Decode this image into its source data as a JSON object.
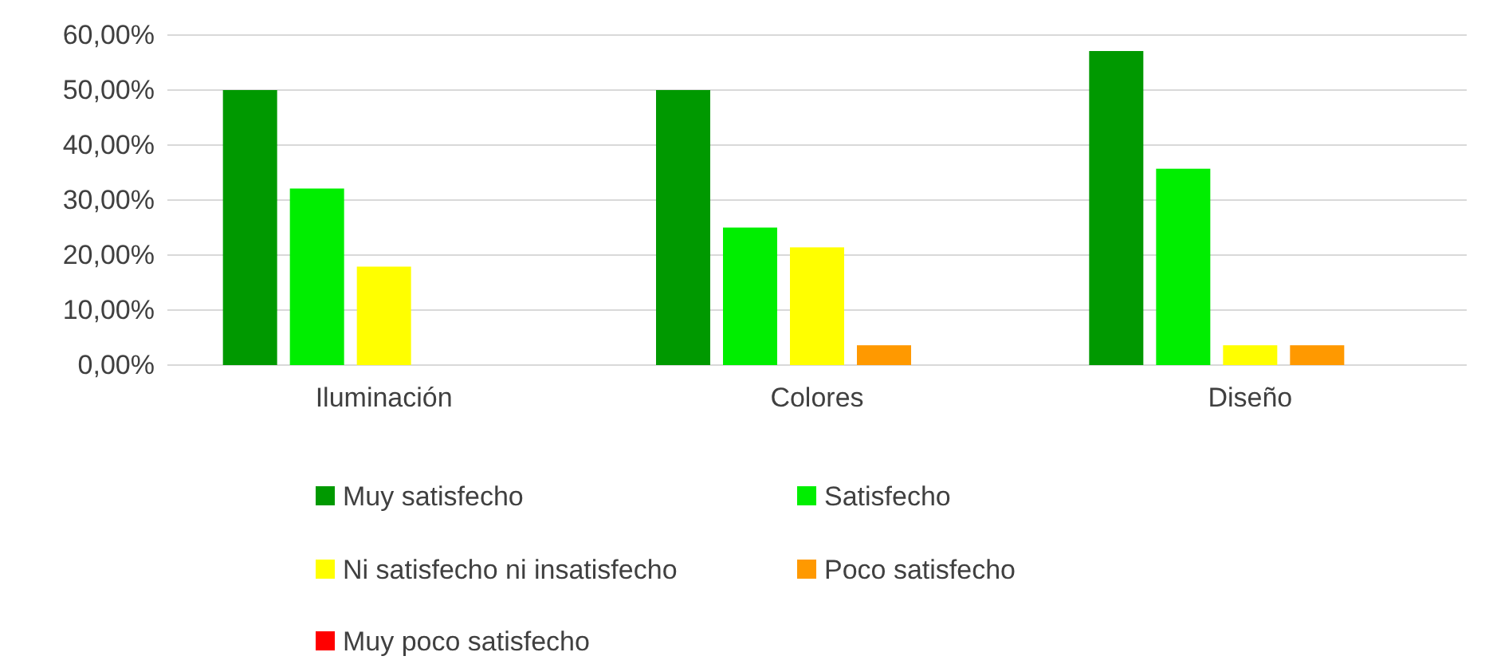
{
  "chart_data": {
    "type": "bar",
    "categories": [
      "Iluminación",
      "Colores",
      "Diseño"
    ],
    "series": [
      {
        "name": "Muy satisfecho",
        "color": "#009900",
        "values": [
          50,
          50,
          57.1
        ]
      },
      {
        "name": "Satisfecho",
        "color": "#00ee00",
        "values": [
          32.1,
          25,
          35.7
        ]
      },
      {
        "name": "Ni satisfecho ni insatisfecho",
        "color": "#ffff00",
        "values": [
          17.9,
          21.4,
          3.6
        ]
      },
      {
        "name": "Poco satisfecho",
        "color": "#ff9900",
        "values": [
          0,
          3.6,
          3.6
        ]
      },
      {
        "name": "Muy poco satisfecho",
        "color": "#ff0000",
        "values": [
          0,
          0,
          0
        ]
      }
    ],
    "ylim": [
      0,
      60
    ],
    "yticks": [
      {
        "value": 0,
        "label": "0,00%"
      },
      {
        "value": 10,
        "label": "10,00%"
      },
      {
        "value": 20,
        "label": "20,00%"
      },
      {
        "value": 30,
        "label": "30,00%"
      },
      {
        "value": 40,
        "label": "40,00%"
      },
      {
        "value": 50,
        "label": "50,00%"
      },
      {
        "value": 60,
        "label": "60,00%"
      }
    ],
    "grid": "y",
    "legend": "bottom"
  }
}
